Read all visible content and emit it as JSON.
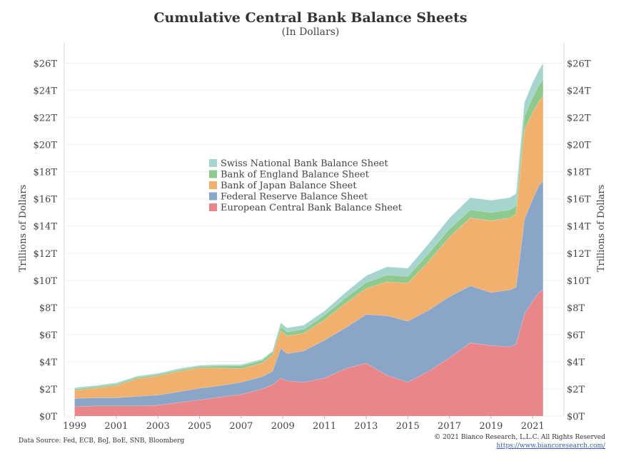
{
  "chart_data": {
    "type": "area",
    "title": "Cumulative Central Bank Balance Sheets",
    "subtitle": "(In Dollars)",
    "ylabel_left": "Trillions of Dollars",
    "ylabel_right": "Trillions of Dollars",
    "ylim": [
      0,
      27.5
    ],
    "yticks": [
      "$0T",
      "$2T",
      "$4T",
      "$6T",
      "$8T",
      "$10T",
      "$12T",
      "$14T",
      "$16T",
      "$18T",
      "$20T",
      "$22T",
      "$24T",
      "$26T"
    ],
    "ytick_values": [
      0,
      2,
      4,
      6,
      8,
      10,
      12,
      14,
      16,
      18,
      20,
      22,
      24,
      26
    ],
    "xlim": [
      1998.5,
      2022.5
    ],
    "xticks": [
      "1999",
      "2001",
      "2003",
      "2005",
      "2007",
      "2009",
      "2011",
      "2013",
      "2015",
      "2017",
      "2019",
      "2021"
    ],
    "xtick_values": [
      1999,
      2001,
      2003,
      2005,
      2007,
      2009,
      2011,
      2013,
      2015,
      2017,
      2019,
      2021
    ],
    "stacked": true,
    "legend_position": "center",
    "x": [
      1999.0,
      2000.0,
      2001.0,
      2002.0,
      2003.0,
      2004.0,
      2005.0,
      2006.0,
      2007.0,
      2008.0,
      2008.5,
      2008.9,
      2009.2,
      2010.0,
      2011.0,
      2012.0,
      2013.0,
      2014.0,
      2015.0,
      2016.0,
      2017.0,
      2018.0,
      2019.0,
      2019.9,
      2020.2,
      2020.6,
      2021.0,
      2021.3,
      2021.5
    ],
    "series": [
      {
        "name": "European Central Bank Balance Sheet",
        "color": "#e8868a",
        "values": [
          0.7,
          0.75,
          0.75,
          0.75,
          0.8,
          1.0,
          1.2,
          1.4,
          1.6,
          2.0,
          2.3,
          2.8,
          2.6,
          2.5,
          2.8,
          3.5,
          3.9,
          3.0,
          2.5,
          3.3,
          4.3,
          5.4,
          5.2,
          5.1,
          5.3,
          7.5,
          8.5,
          9.1,
          9.3
        ]
      },
      {
        "name": "Federal Reserve Balance Sheet",
        "color": "#8aa5c8",
        "values": [
          0.6,
          0.6,
          0.6,
          0.7,
          0.75,
          0.8,
          0.85,
          0.85,
          0.9,
          0.9,
          1.0,
          2.2,
          2.0,
          2.3,
          2.8,
          3.0,
          3.6,
          4.4,
          4.5,
          4.5,
          4.5,
          4.2,
          3.9,
          4.2,
          4.2,
          7.0,
          7.5,
          7.9,
          8.0
        ]
      },
      {
        "name": "Bank of Japan Balance Sheet",
        "color": "#f2b06e",
        "values": [
          0.6,
          0.7,
          0.9,
          1.3,
          1.4,
          1.5,
          1.5,
          1.3,
          1.0,
          1.0,
          1.2,
          1.3,
          1.3,
          1.3,
          1.5,
          1.8,
          1.9,
          2.5,
          2.8,
          3.6,
          4.4,
          5.0,
          5.3,
          5.3,
          5.4,
          6.6,
          6.4,
          6.2,
          6.3
        ]
      },
      {
        "name": "Bank of England Balance Sheet",
        "color": "#8ec98d",
        "values": [
          0.1,
          0.1,
          0.1,
          0.1,
          0.1,
          0.1,
          0.1,
          0.15,
          0.2,
          0.2,
          0.2,
          0.3,
          0.3,
          0.3,
          0.35,
          0.4,
          0.45,
          0.5,
          0.5,
          0.6,
          0.6,
          0.6,
          0.6,
          0.6,
          0.6,
          1.0,
          1.1,
          1.2,
          1.2
        ]
      },
      {
        "name": "Swiss National Bank Balance Sheet",
        "color": "#a6d4cf",
        "values": [
          0.1,
          0.1,
          0.1,
          0.1,
          0.1,
          0.1,
          0.1,
          0.1,
          0.1,
          0.1,
          0.1,
          0.3,
          0.3,
          0.3,
          0.3,
          0.4,
          0.5,
          0.6,
          0.6,
          0.7,
          0.8,
          0.9,
          0.9,
          0.9,
          0.9,
          1.0,
          1.1,
          1.1,
          1.2
        ]
      }
    ]
  },
  "footer": {
    "source": "Data Source: Fed, ECB, BoJ, BoE, SNB, Bloomberg",
    "copyright": "© 2021 Bianco Research, L.L.C. All Rights Reserved",
    "url": "https://www.biancoresearch.com/"
  }
}
